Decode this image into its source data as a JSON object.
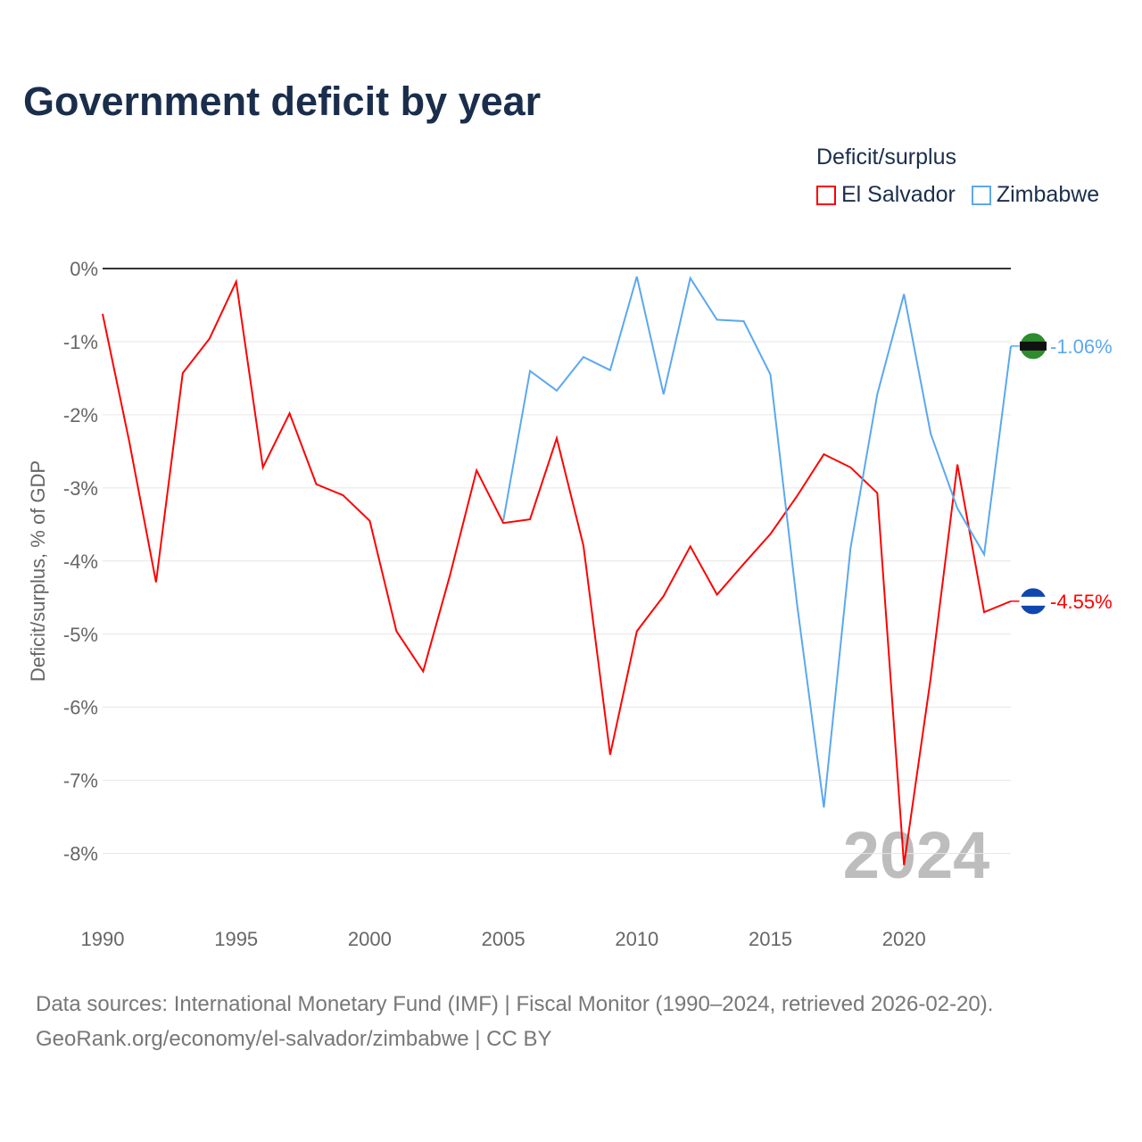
{
  "title": "Government deficit by year",
  "legend": {
    "title": "Deficit/surplus",
    "items": [
      {
        "label": "El Salvador",
        "color": "#ff0000"
      },
      {
        "label": "Zimbabwe",
        "color": "#5ba8f0"
      }
    ]
  },
  "year_watermark": "2024",
  "source_line1": "Data sources: International Monetary Fund (IMF) | Fiscal Monitor (1990–2024, retrieved 2026-02-20).",
  "source_line2": "GeoRank.org/economy/el-salvador/zimbabwe | CC BY",
  "chart_data": {
    "type": "line",
    "title": "Government deficit by year",
    "xlabel": "",
    "ylabel": "Deficit/surplus, % of GDP",
    "xlim": [
      1990,
      2024
    ],
    "ylim": [
      -8.5,
      0
    ],
    "xticks": [
      1990,
      1995,
      2000,
      2005,
      2010,
      2015,
      2020
    ],
    "xtick_labels": [
      "1990",
      "1995",
      "2000",
      "2005",
      "2010",
      "2015",
      "2020"
    ],
    "yticks": [
      0,
      -1,
      -2,
      -3,
      -4,
      -5,
      -6,
      -7,
      -8
    ],
    "ytick_labels": [
      "0%",
      "-1%",
      "-2%",
      "-3%",
      "-4%",
      "-5%",
      "-6%",
      "-7%",
      "-8%"
    ],
    "series": [
      {
        "name": "El Salvador",
        "color": "#ff0000",
        "end_label": "-4.55%",
        "x": [
          1990,
          1991,
          1992,
          1993,
          1994,
          1995,
          1996,
          1997,
          1998,
          1999,
          2000,
          2001,
          2002,
          2003,
          2004,
          2005,
          2006,
          2007,
          2008,
          2009,
          2010,
          2011,
          2012,
          2013,
          2014,
          2015,
          2016,
          2017,
          2018,
          2019,
          2020,
          2021,
          2022,
          2023,
          2024
        ],
        "values": [
          -0.62,
          -2.37,
          -4.29,
          -1.43,
          -0.96,
          -0.18,
          -2.72,
          -1.98,
          -2.95,
          -3.1,
          -3.45,
          -4.96,
          -5.51,
          -4.2,
          -2.76,
          -3.48,
          -3.43,
          -2.32,
          -3.79,
          -6.65,
          -4.96,
          -4.48,
          -3.8,
          -4.46,
          -4.04,
          -3.63,
          -3.11,
          -2.54,
          -2.72,
          -3.07,
          -8.16,
          -5.6,
          -2.68,
          -4.7,
          -4.55
        ]
      },
      {
        "name": "Zimbabwe",
        "color": "#5ba8f0",
        "end_label": "-1.06%",
        "x": [
          2005,
          2006,
          2007,
          2008,
          2009,
          2010,
          2011,
          2012,
          2013,
          2014,
          2015,
          2016,
          2017,
          2018,
          2019,
          2020,
          2021,
          2022,
          2023,
          2024
        ],
        "values": [
          -3.45,
          -1.4,
          -1.67,
          -1.21,
          -1.39,
          -0.11,
          -1.72,
          -0.13,
          -0.7,
          -0.72,
          -1.45,
          -4.6,
          -7.37,
          -3.82,
          -1.72,
          -0.35,
          -2.26,
          -3.28,
          -3.91,
          -1.06
        ]
      }
    ]
  }
}
